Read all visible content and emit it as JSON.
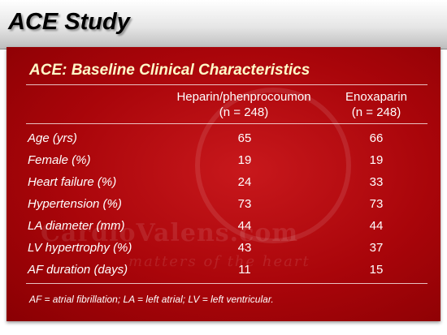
{
  "slide": {
    "title": "ACE Study"
  },
  "panel": {
    "title": "ACE: Baseline Clinical Characteristics",
    "columns": [
      {
        "name": "Heparin/phenprocoumon",
        "n": "(n = 248)"
      },
      {
        "name": "Enoxaparin",
        "n": "(n = 248)"
      }
    ],
    "rows": [
      {
        "label": "Age (yrs)",
        "values": [
          "65",
          "66"
        ]
      },
      {
        "label": "Female (%)",
        "values": [
          "19",
          "19"
        ]
      },
      {
        "label": "Heart failure (%)",
        "values": [
          "24",
          "33"
        ]
      },
      {
        "label": "Hypertension (%)",
        "values": [
          "73",
          "73"
        ]
      },
      {
        "label": "LA diameter (mm)",
        "values": [
          "44",
          "44"
        ]
      },
      {
        "label": "LV hypertrophy (%)",
        "values": [
          "43",
          "37"
        ]
      },
      {
        "label": "AF duration (days)",
        "values": [
          "11",
          "15"
        ]
      }
    ],
    "footnote": "AF = atrial fibrillation; LA = left atrial; LV = left ventricular."
  },
  "watermark": {
    "text": "CardioValens.com",
    "tagline": "matters of the heart"
  },
  "colors": {
    "panel_red": "#a9050a",
    "title_yellow": "#fffac8"
  }
}
